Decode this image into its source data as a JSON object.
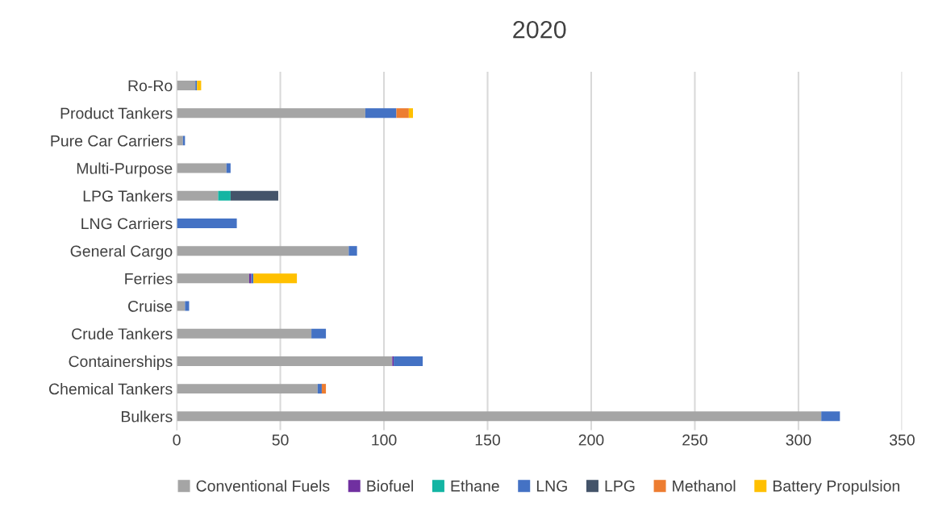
{
  "chart_data": {
    "type": "bar",
    "title": "2020",
    "orientation": "horizontal",
    "stacked": true,
    "categories": [
      "Ro-Ro",
      "Product Tankers",
      "Pure Car Carriers",
      "Multi-Purpose",
      "LPG Tankers",
      "LNG Carriers",
      "General Cargo",
      "Ferries",
      "Cruise",
      "Crude Tankers",
      "Containerships",
      "Chemical Tankers",
      "Bulkers"
    ],
    "series": [
      {
        "name": "Conventional Fuels",
        "color": "#a5a5a5",
        "values": [
          9,
          91,
          3,
          24,
          20,
          null,
          83,
          35,
          4,
          65,
          104,
          68,
          311
        ]
      },
      {
        "name": "Biofuel",
        "color": "#7030a0",
        "values": [
          null,
          null,
          null,
          null,
          null,
          null,
          null,
          1,
          null,
          null,
          0.7,
          null,
          null
        ]
      },
      {
        "name": "Ethane",
        "color": "#13b5a3",
        "values": [
          null,
          null,
          null,
          null,
          6,
          null,
          null,
          null,
          null,
          null,
          null,
          null,
          null
        ]
      },
      {
        "name": "LNG",
        "color": "#4472c4",
        "values": [
          0.8,
          15,
          1,
          2,
          null,
          29,
          4,
          1,
          2,
          7,
          14,
          2,
          9
        ]
      },
      {
        "name": "LPG",
        "color": "#44546a",
        "values": [
          null,
          null,
          null,
          null,
          23,
          null,
          null,
          null,
          null,
          null,
          null,
          null,
          null
        ]
      },
      {
        "name": "Methanol",
        "color": "#ed7d31",
        "values": [
          null,
          6,
          null,
          null,
          null,
          null,
          null,
          null,
          null,
          null,
          null,
          2,
          null
        ]
      },
      {
        "name": "Battery Propulsion",
        "color": "#ffc000",
        "values": [
          2,
          2,
          null,
          null,
          null,
          null,
          null,
          21,
          null,
          null,
          null,
          null,
          null
        ]
      }
    ],
    "xlim": [
      0,
      350
    ],
    "xticks": [
      0,
      50,
      100,
      150,
      200,
      250,
      300,
      350
    ],
    "grid": "x",
    "legend": "bottom"
  }
}
